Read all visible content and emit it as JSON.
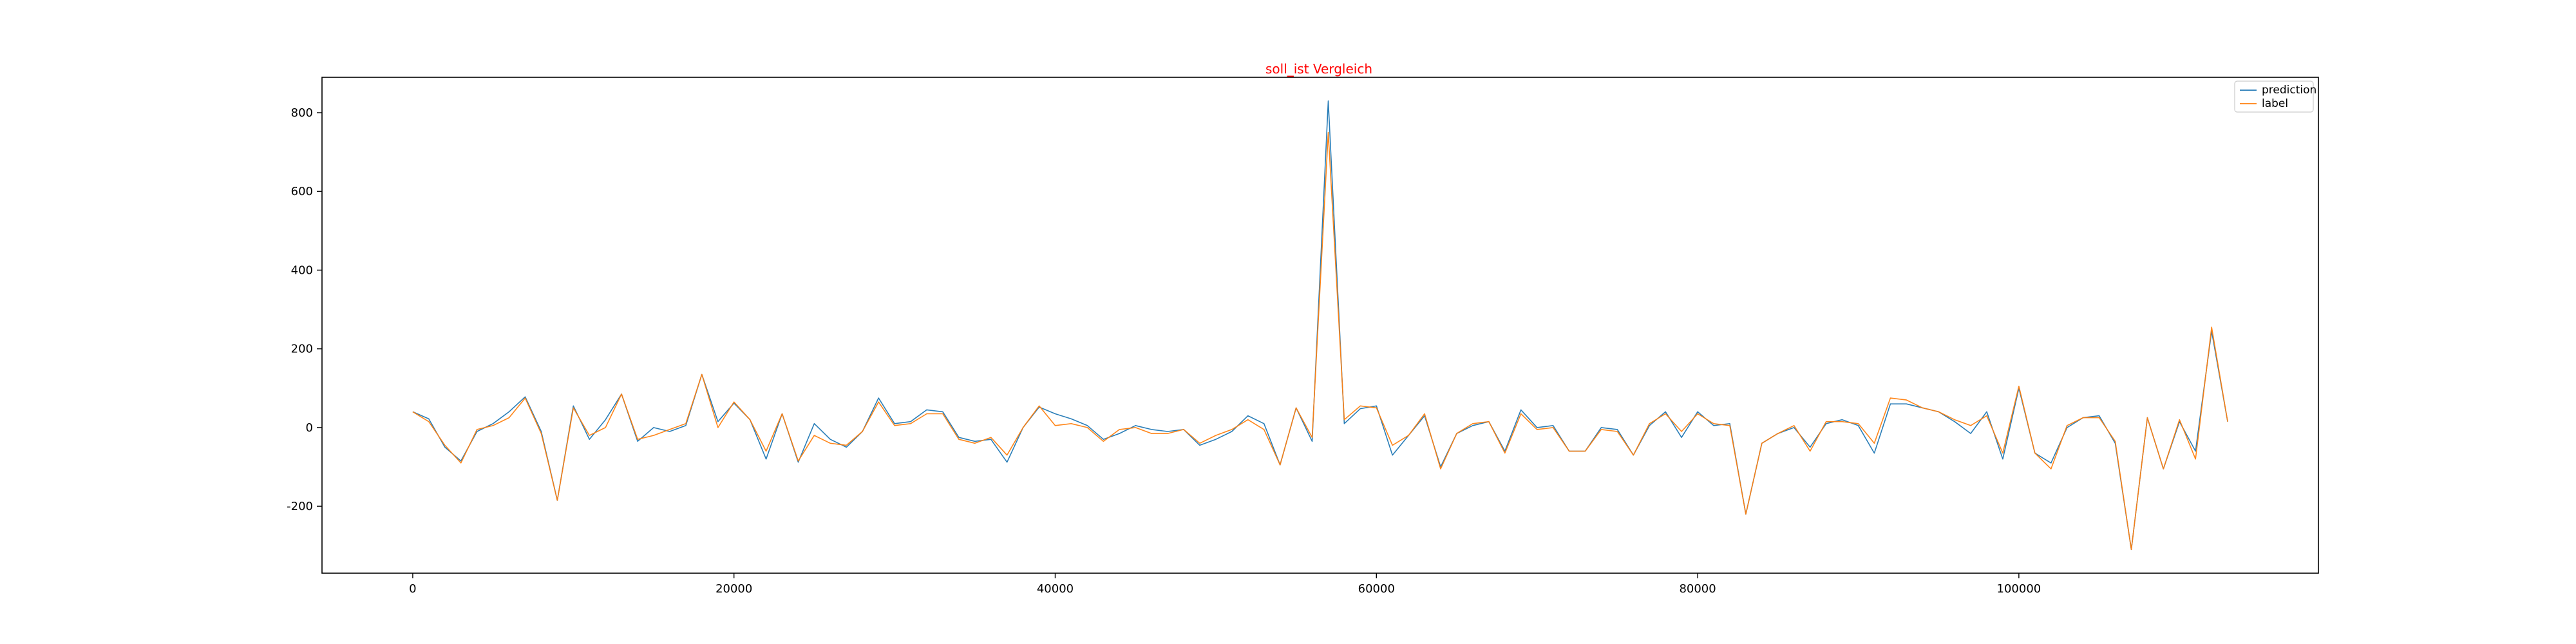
{
  "chart_data": {
    "type": "line",
    "title": "soll_ist Vergleich",
    "title_color": "#ff0000",
    "xlabel": "",
    "ylabel": "",
    "xlim": [
      -5650,
      118650
    ],
    "ylim": [
      -370,
      890
    ],
    "xticks": [
      0,
      20000,
      40000,
      60000,
      80000,
      100000
    ],
    "yticks": [
      -200,
      0,
      200,
      400,
      600,
      800
    ],
    "grid": false,
    "legend": "top-right",
    "x": [
      0,
      1000,
      2000,
      3000,
      4000,
      5000,
      6000,
      7000,
      8000,
      9000,
      10000,
      11000,
      12000,
      13000,
      14000,
      15000,
      16000,
      17000,
      18000,
      19000,
      20000,
      21000,
      22000,
      23000,
      24000,
      25000,
      26000,
      27000,
      28000,
      29000,
      30000,
      31000,
      32000,
      33000,
      34000,
      35000,
      36000,
      37000,
      38000,
      39000,
      40000,
      41000,
      42000,
      43000,
      44000,
      45000,
      46000,
      47000,
      48000,
      49000,
      50000,
      51000,
      52000,
      53000,
      54000,
      55000,
      56000,
      57000,
      58000,
      59000,
      60000,
      61000,
      62000,
      63000,
      64000,
      65000,
      66000,
      67000,
      68000,
      69000,
      70000,
      71000,
      72000,
      73000,
      74000,
      75000,
      76000,
      77000,
      78000,
      79000,
      80000,
      81000,
      82000,
      83000,
      84000,
      85000,
      86000,
      87000,
      88000,
      89000,
      90000,
      91000,
      92000,
      93000,
      94000,
      95000,
      96000,
      97000,
      98000,
      99000,
      100000,
      101000,
      102000,
      103000,
      104000,
      105000,
      106000,
      107000,
      108000,
      109000,
      110000,
      111000,
      112000,
      113000
    ],
    "series": [
      {
        "name": "prediction",
        "color": "#1f77b4",
        "values": [
          40,
          22,
          -50,
          -85,
          -10,
          10,
          40,
          78,
          -10,
          -185,
          55,
          -30,
          20,
          85,
          -35,
          0,
          -10,
          5,
          135,
          15,
          62,
          20,
          -80,
          35,
          -88,
          10,
          -30,
          -50,
          -10,
          75,
          10,
          15,
          45,
          40,
          -25,
          -35,
          -30,
          -88,
          0,
          52,
          35,
          22,
          5,
          -30,
          -15,
          5,
          -5,
          -10,
          -5,
          -45,
          -30,
          -10,
          30,
          10,
          -95,
          50,
          -35,
          830,
          10,
          48,
          55,
          -70,
          -20,
          30,
          -100,
          -15,
          5,
          15,
          -60,
          45,
          0,
          5,
          -60,
          -60,
          0,
          -5,
          -70,
          5,
          40,
          -25,
          40,
          5,
          10,
          -220,
          -40,
          -15,
          0,
          -50,
          10,
          20,
          5,
          -65,
          60,
          60,
          50,
          40,
          15,
          -15,
          40,
          -80,
          100,
          -65,
          -90,
          0,
          25,
          30,
          -40,
          -310,
          25,
          -105,
          15,
          -60,
          245,
          15
        ]
      },
      {
        "name": "label",
        "color": "#ff7f0e",
        "values": [
          40,
          15,
          -45,
          -90,
          -5,
          5,
          25,
          75,
          -15,
          -185,
          50,
          -20,
          0,
          85,
          -30,
          -20,
          -5,
          10,
          135,
          0,
          65,
          20,
          -60,
          35,
          -85,
          -20,
          -40,
          -45,
          -10,
          65,
          5,
          10,
          35,
          35,
          -30,
          -40,
          -25,
          -70,
          0,
          55,
          5,
          10,
          0,
          -35,
          -5,
          0,
          -15,
          -15,
          -5,
          -40,
          -20,
          -5,
          20,
          -5,
          -95,
          50,
          -25,
          750,
          20,
          55,
          50,
          -45,
          -20,
          35,
          -105,
          -15,
          10,
          15,
          -65,
          35,
          -5,
          0,
          -60,
          -60,
          -5,
          -10,
          -70,
          10,
          35,
          -10,
          35,
          10,
          5,
          -220,
          -40,
          -15,
          5,
          -60,
          15,
          15,
          10,
          -40,
          75,
          70,
          50,
          40,
          20,
          5,
          30,
          -65,
          105,
          -65,
          -105,
          5,
          25,
          25,
          -35,
          -310,
          25,
          -105,
          20,
          -80,
          255,
          15
        ]
      }
    ]
  }
}
